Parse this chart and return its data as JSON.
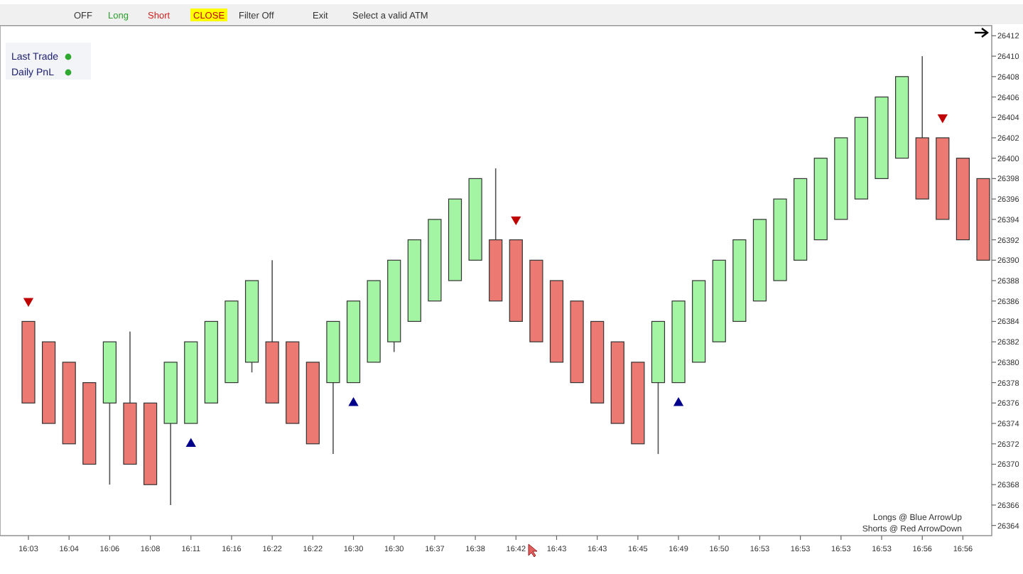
{
  "chart_data": {
    "type": "candlestick",
    "categories": [
      "16:03",
      null,
      "16:04",
      null,
      "16:06",
      null,
      "16:08",
      null,
      "16:11",
      null,
      "16:16",
      null,
      "16:22",
      null,
      "16:22",
      null,
      "16:30",
      null,
      "16:30",
      null,
      "16:37",
      null,
      "16:38",
      null,
      "16:42",
      null,
      "16:43",
      null,
      "16:43",
      null,
      "16:45",
      null,
      "16:49",
      null,
      "16:50",
      null,
      "16:53",
      null,
      "16:53",
      null,
      "16:53",
      null,
      "16:53",
      null,
      "16:56",
      null,
      "16:56",
      null
    ],
    "ohlc": [
      [
        26384,
        26384,
        26376,
        26376
      ],
      [
        26382,
        26382,
        26374,
        26374
      ],
      [
        26380,
        26380,
        26372,
        26372
      ],
      [
        26378,
        26378,
        26370,
        26370
      ],
      [
        26376,
        26382,
        26368,
        26382
      ],
      [
        26376,
        26383,
        26370,
        26370
      ],
      [
        26376,
        26376,
        26368,
        26368
      ],
      [
        26374,
        26380,
        26366,
        26380
      ],
      [
        26374,
        26382,
        26374,
        26382
      ],
      [
        26376,
        26384,
        26376,
        26384
      ],
      [
        26378,
        26386,
        26378,
        26386
      ],
      [
        26380,
        26388,
        26379,
        26388
      ],
      [
        26382,
        26390,
        26376,
        26376
      ],
      [
        26382,
        26382,
        26374,
        26374
      ],
      [
        26380,
        26380,
        26372,
        26372
      ],
      [
        26378,
        26384,
        26371,
        26384
      ],
      [
        26378,
        26386,
        26378,
        26386
      ],
      [
        26380,
        26388,
        26380,
        26388
      ],
      [
        26382,
        26390,
        26381,
        26390
      ],
      [
        26384,
        26392,
        26384,
        26392
      ],
      [
        26386,
        26394,
        26386,
        26394
      ],
      [
        26388,
        26396,
        26388,
        26396
      ],
      [
        26390,
        26398,
        26390,
        26398
      ],
      [
        26392,
        26399,
        26386,
        26386
      ],
      [
        26392,
        26392,
        26384,
        26384
      ],
      [
        26390,
        26390,
        26382,
        26382
      ],
      [
        26388,
        26388,
        26380,
        26380
      ],
      [
        26386,
        26386,
        26378,
        26378
      ],
      [
        26384,
        26384,
        26376,
        26376
      ],
      [
        26382,
        26382,
        26374,
        26374
      ],
      [
        26380,
        26380,
        26372,
        26372
      ],
      [
        26378,
        26384,
        26371,
        26384
      ],
      [
        26378,
        26386,
        26378,
        26386
      ],
      [
        26380,
        26388,
        26380,
        26388
      ],
      [
        26382,
        26390,
        26382,
        26390
      ],
      [
        26384,
        26392,
        26384,
        26392
      ],
      [
        26386,
        26394,
        26386,
        26394
      ],
      [
        26388,
        26396,
        26388,
        26396
      ],
      [
        26390,
        26398,
        26390,
        26398
      ],
      [
        26392,
        26400,
        26392,
        26400
      ],
      [
        26394,
        26402,
        26394,
        26402
      ],
      [
        26396,
        26404,
        26396,
        26404
      ],
      [
        26398,
        26406,
        26398,
        26406
      ],
      [
        26400,
        26408,
        26400,
        26408
      ],
      [
        26402,
        26410,
        26396,
        26396
      ],
      [
        26402,
        26402,
        26394,
        26394
      ],
      [
        26400,
        26400,
        26392,
        26392
      ],
      [
        26398,
        26398,
        26390,
        26390
      ]
    ],
    "colors": [
      "#ed7a72",
      "#ed7a72",
      "#ed7a72",
      "#ed7a72",
      "#a3f5a3",
      "#ed7a72",
      "#ed7a72",
      "#a3f5a3",
      "#a3f5a3",
      "#a3f5a3",
      "#a3f5a3",
      "#a3f5a3",
      "#ed7a72",
      "#ed7a72",
      "#ed7a72",
      "#a3f5a3",
      "#a3f5a3",
      "#a3f5a3",
      "#a3f5a3",
      "#a3f5a3",
      "#a3f5a3",
      "#a3f5a3",
      "#a3f5a3",
      "#ed7a72",
      "#ed7a72",
      "#ed7a72",
      "#ed7a72",
      "#ed7a72",
      "#ed7a72",
      "#ed7a72",
      "#ed7a72",
      "#a3f5a3",
      "#a3f5a3",
      "#a3f5a3",
      "#a3f5a3",
      "#a3f5a3",
      "#a3f5a3",
      "#a3f5a3",
      "#a3f5a3",
      "#a3f5a3",
      "#a3f5a3",
      "#a3f5a3",
      "#a3f5a3",
      "#a3f5a3",
      "#ed7a72",
      "#ed7a72",
      "#ed7a72",
      "#ed7a72"
    ],
    "series": [
      {
        "type": "scatter",
        "marker": "triangle-down",
        "color": "#c00000",
        "values": [
          26386,
          null,
          null,
          null,
          null,
          null,
          null,
          null,
          null,
          null,
          null,
          null,
          null,
          null,
          null,
          null,
          null,
          null,
          null,
          null,
          null,
          null,
          null,
          null,
          26394,
          null,
          null,
          null,
          null,
          null,
          null,
          null,
          null,
          null,
          null,
          null,
          null,
          null,
          null,
          null,
          null,
          null,
          null,
          null,
          null,
          26404,
          null,
          null
        ]
      },
      {
        "type": "scatter",
        "marker": "triangle",
        "color": "#00008b",
        "values": [
          null,
          null,
          null,
          null,
          null,
          null,
          null,
          null,
          26372,
          null,
          null,
          null,
          null,
          null,
          null,
          null,
          26376,
          null,
          null,
          null,
          null,
          null,
          null,
          null,
          null,
          null,
          null,
          null,
          null,
          null,
          null,
          null,
          26376,
          null,
          null,
          null,
          null,
          null,
          null,
          null,
          null,
          null,
          null,
          null,
          null,
          null,
          null,
          null
        ]
      }
    ],
    "ylim": [
      26363,
      26413
    ],
    "yticks": [
      26364,
      26366,
      26368,
      26370,
      26372,
      26374,
      26376,
      26378,
      26380,
      26382,
      26384,
      26386,
      26388,
      26390,
      26392,
      26394,
      26396,
      26398,
      26400,
      26402,
      26404,
      26406,
      26408,
      26410,
      26412
    ],
    "grid": false,
    "annotations": [
      "OFF",
      "Long",
      "Short",
      "CLOSE",
      "Filter Off",
      "Exit",
      "Select a valid ATM",
      "Last Trade",
      "Daily PnL",
      "Longs @ Blue ArrowUp",
      "Shorts @ Red ArrowDown"
    ]
  }
}
